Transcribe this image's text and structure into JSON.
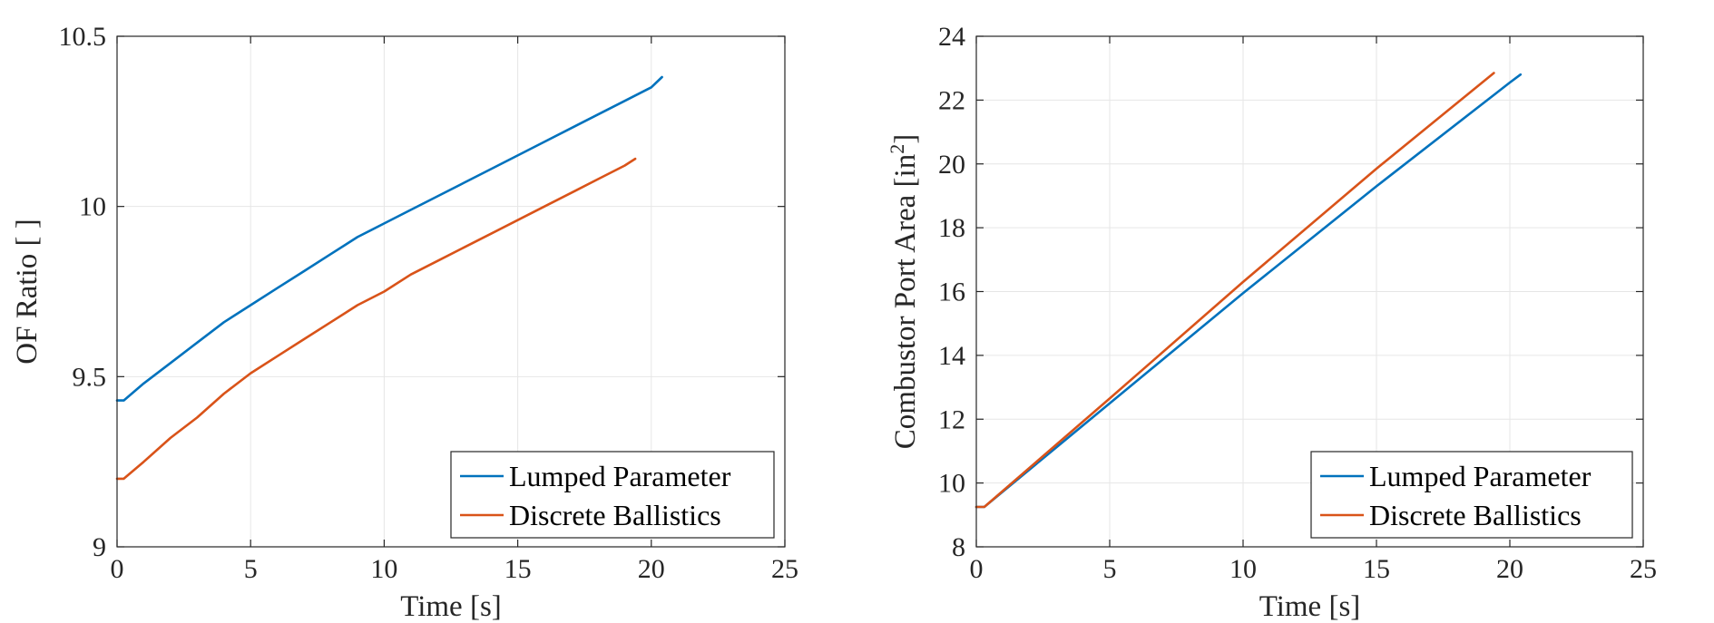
{
  "chart_data": [
    {
      "type": "line",
      "xlabel": "Time [s]",
      "ylabel": "OF Ratio [ ]",
      "xlim": [
        0,
        25
      ],
      "ylim": [
        9,
        10.5
      ],
      "xticks": [
        0,
        5,
        10,
        15,
        20,
        25
      ],
      "yticks": [
        9,
        9.5,
        10,
        10.5
      ],
      "xtick_labels": [
        "0",
        "5",
        "10",
        "15",
        "20",
        "25"
      ],
      "ytick_labels": [
        "9",
        "9.5",
        "10",
        "10.5"
      ],
      "grid": true,
      "legend_position": "bottom-right",
      "series": [
        {
          "name": "Lumped Parameter",
          "color": "#0072BD",
          "x": [
            0.0,
            0.25,
            1,
            2,
            3,
            4,
            5,
            6,
            7,
            8,
            9,
            10,
            11,
            12,
            13,
            14,
            15,
            16,
            17,
            18,
            19,
            20,
            20.4
          ],
          "y": [
            9.43,
            9.43,
            9.48,
            9.54,
            9.6,
            9.66,
            9.71,
            9.76,
            9.81,
            9.86,
            9.91,
            9.95,
            9.99,
            10.03,
            10.07,
            10.11,
            10.15,
            10.19,
            10.23,
            10.27,
            10.31,
            10.35,
            10.38
          ]
        },
        {
          "name": "Discrete Ballistics",
          "color": "#D95319",
          "x": [
            0.0,
            0.25,
            1,
            2,
            3,
            4,
            5,
            6,
            7,
            8,
            9,
            10,
            11,
            12,
            13,
            14,
            15,
            16,
            17,
            18,
            19,
            19.4
          ],
          "y": [
            9.2,
            9.2,
            9.25,
            9.32,
            9.38,
            9.45,
            9.51,
            9.56,
            9.61,
            9.66,
            9.71,
            9.75,
            9.8,
            9.84,
            9.88,
            9.92,
            9.96,
            10.0,
            10.04,
            10.08,
            10.12,
            10.14
          ]
        }
      ]
    },
    {
      "type": "line",
      "xlabel": "Time [s]",
      "ylabel": "Combustor Port Area [in",
      "ylabel_sup": "2",
      "ylabel_end": "]",
      "xlim": [
        0,
        25
      ],
      "ylim": [
        8,
        24
      ],
      "xticks": [
        0,
        5,
        10,
        15,
        20,
        25
      ],
      "yticks": [
        8,
        10,
        12,
        14,
        16,
        18,
        20,
        22,
        24
      ],
      "xtick_labels": [
        "0",
        "5",
        "10",
        "15",
        "20",
        "25"
      ],
      "ytick_labels": [
        "8",
        "10",
        "12",
        "14",
        "16",
        "18",
        "20",
        "22",
        "24"
      ],
      "grid": true,
      "legend_position": "bottom-right",
      "series": [
        {
          "name": "Lumped Parameter",
          "color": "#0072BD",
          "x": [
            0.0,
            0.3,
            5,
            10,
            15,
            20,
            20.4
          ],
          "y": [
            9.25,
            9.25,
            12.5,
            15.95,
            19.3,
            22.55,
            22.8
          ]
        },
        {
          "name": "Discrete Ballistics",
          "color": "#D95319",
          "x": [
            0.0,
            0.3,
            5,
            10,
            15,
            19.4
          ],
          "y": [
            9.25,
            9.25,
            12.65,
            16.3,
            19.85,
            22.85
          ]
        }
      ]
    }
  ]
}
